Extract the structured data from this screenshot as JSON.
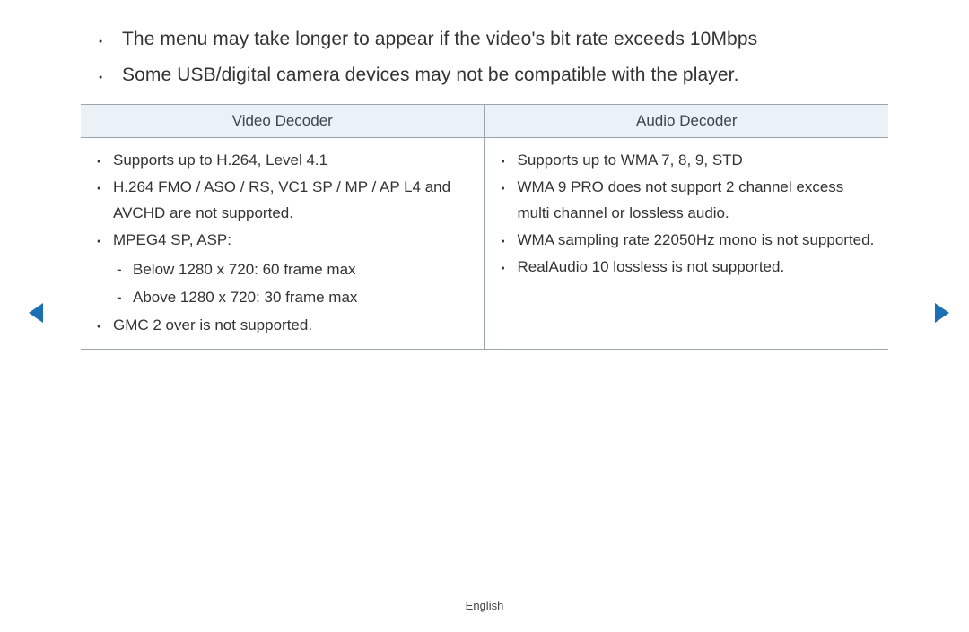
{
  "intro_bullets": [
    "The menu may take longer to appear if the video's bit rate exceeds 10Mbps",
    "Some USB/digital camera devices may not be compatible with the player."
  ],
  "table": {
    "columns": [
      "Video Decoder",
      "Audio Decoder"
    ],
    "header_bg": "#eaf2f7",
    "border_color": "#9aa5ad",
    "video": {
      "items": [
        {
          "text": "Supports up to H.264, Level 4.1"
        },
        {
          "text": "H.264 FMO / ASO / RS, VC1 SP / MP / AP L4 and AVCHD are not supported."
        },
        {
          "text": "MPEG4 SP, ASP:",
          "sub": [
            "Below 1280 x 720: 60 frame max",
            "Above 1280 x 720: 30 frame max"
          ]
        },
        {
          "text": "GMC 2 over is not supported."
        }
      ]
    },
    "audio": {
      "items": [
        {
          "text": "Supports up to WMA 7, 8, 9, STD"
        },
        {
          "text": "WMA 9 PRO does not support 2 channel excess multi channel or lossless audio."
        },
        {
          "text": "WMA sampling rate 22050Hz mono is not supported."
        },
        {
          "text": "RealAudio 10 lossless is not supported."
        }
      ]
    }
  },
  "nav_arrow_color": "#1a6fb5",
  "footer": {
    "language": "English"
  }
}
